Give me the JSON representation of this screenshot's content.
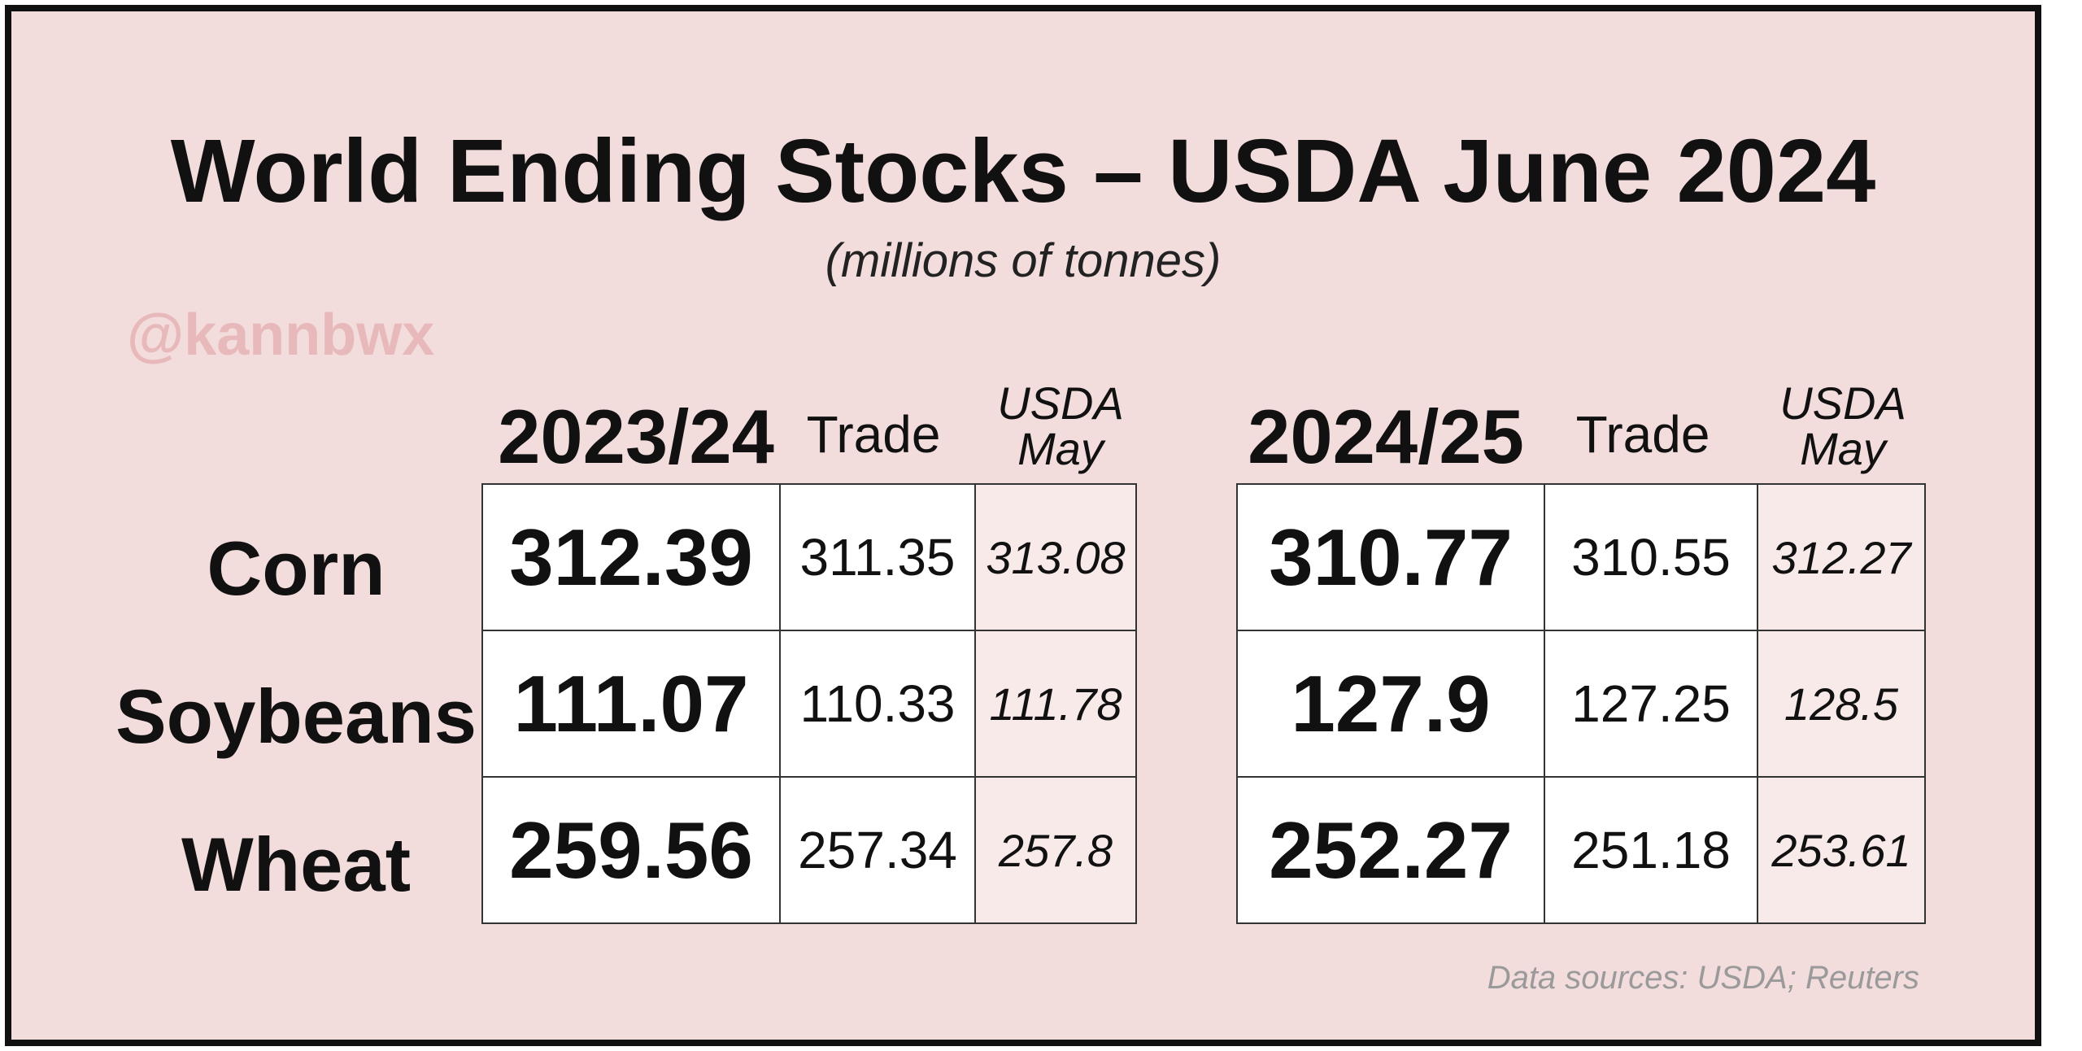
{
  "chart_data": {
    "type": "table",
    "title": "World Ending Stocks – USDA June 2024",
    "subtitle": "(millions of tonnes)",
    "watermark": "@kannbwx",
    "rows": [
      "Corn",
      "Soybeans",
      "Wheat"
    ],
    "column_labels": {
      "trade": "Trade",
      "usda_may": "USDA May"
    },
    "tables": [
      {
        "year": "2023/24",
        "values": [
          {
            "main": "312.39",
            "trade": "311.35",
            "may": "313.08"
          },
          {
            "main": "111.07",
            "trade": "110.33",
            "may": "111.78"
          },
          {
            "main": "259.56",
            "trade": "257.34",
            "may": "257.8"
          }
        ]
      },
      {
        "year": "2024/25",
        "values": [
          {
            "main": "310.77",
            "trade": "310.55",
            "may": "312.27"
          },
          {
            "main": "127.9",
            "trade": "127.25",
            "may": "128.5"
          },
          {
            "main": "252.27",
            "trade": "251.18",
            "may": "253.61"
          }
        ]
      }
    ],
    "source": "Data sources: USDA; Reuters"
  },
  "colors": {
    "background": "#f3dcdc",
    "border": "#111111",
    "may_cell": "#f9eaea",
    "watermark": "#e8b9bb",
    "source_text": "#9a9a9a"
  }
}
